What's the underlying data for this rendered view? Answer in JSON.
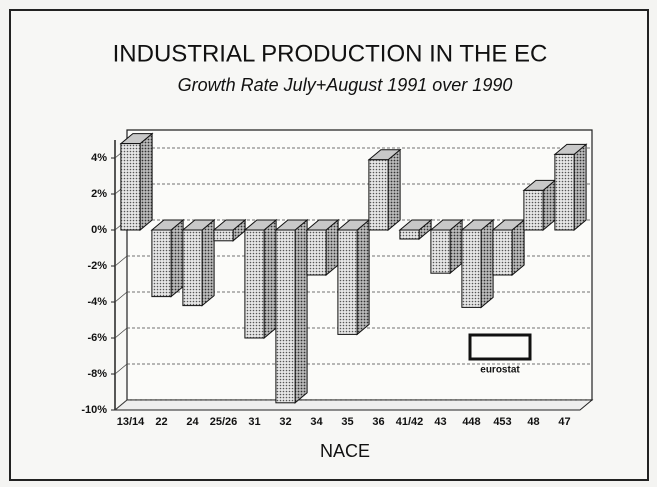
{
  "chart_data": {
    "type": "bar3d",
    "title": "INDUSTRIAL PRODUCTION IN THE EC",
    "subtitle": "Growth Rate July+August 1991 over 1990",
    "x_label": "NACE",
    "logo_text": "eurostat",
    "categories": [
      "13/14",
      "22",
      "24",
      "25/26",
      "31",
      "32",
      "34",
      "35",
      "36",
      "41/42",
      "43",
      "448",
      "453",
      "48",
      "47"
    ],
    "values": [
      4.8,
      -3.7,
      -4.2,
      -0.6,
      -6.0,
      -9.6,
      -2.5,
      -5.8,
      3.9,
      -0.5,
      -2.4,
      -4.3,
      -2.5,
      2.2,
      4.2
    ],
    "color": "#c8c8c8",
    "ylim": [
      -10,
      5
    ],
    "yticks": [
      {
        "value": -10,
        "label": "-10%"
      },
      {
        "value": -8,
        "label": "-8%"
      },
      {
        "value": -6,
        "label": "-6%"
      },
      {
        "value": -4,
        "label": "-4%"
      },
      {
        "value": -2,
        "label": "-2%"
      },
      {
        "value": 0,
        "label": "0%"
      },
      {
        "value": 2,
        "label": "2%"
      },
      {
        "value": 4,
        "label": "4%"
      }
    ],
    "grid": true
  }
}
